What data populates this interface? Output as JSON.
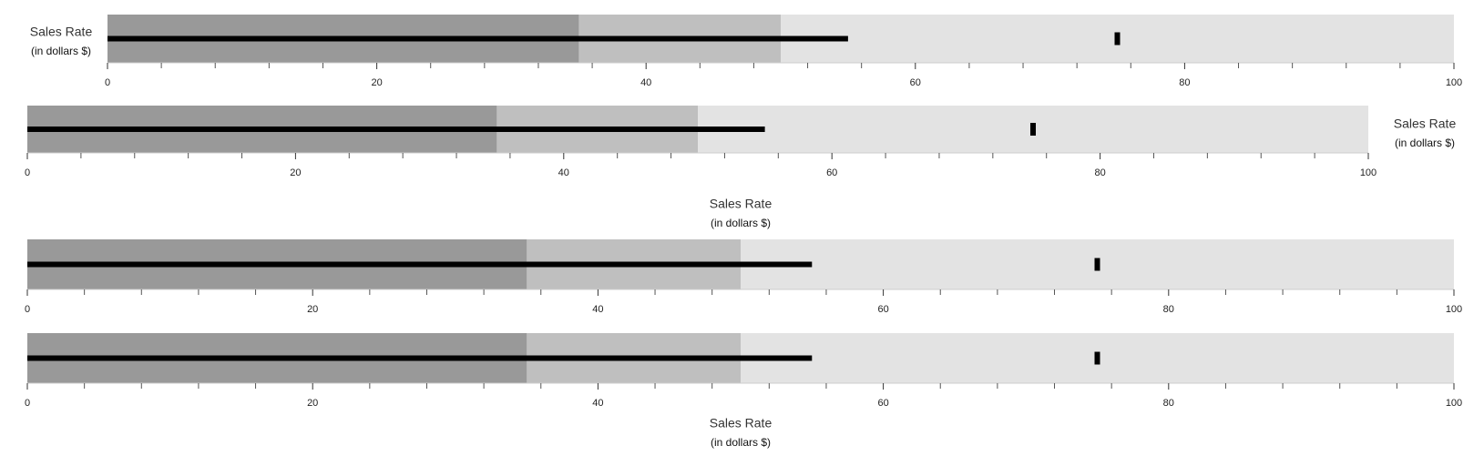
{
  "chart_data": [
    {
      "type": "bullet",
      "title": "Sales Rate",
      "subtitle": "(in dollars $)",
      "title_position": "left",
      "ranges": [
        35,
        50,
        100
      ],
      "range_colors": [
        "#999999",
        "#bfbfbf",
        "#e3e3e3"
      ],
      "value": 55,
      "value_color": "#000000",
      "marker": 75,
      "marker_color": "#000000",
      "xlim": [
        0,
        100
      ],
      "xticks": [
        0,
        20,
        40,
        60,
        80,
        100
      ],
      "xminorticks": [
        4,
        8,
        12,
        16,
        24,
        28,
        32,
        36,
        44,
        48,
        52,
        56,
        64,
        68,
        72,
        76,
        84,
        88,
        92,
        96
      ]
    },
    {
      "type": "bullet",
      "title": "Sales Rate",
      "subtitle": "(in dollars $)",
      "title_position": "right",
      "ranges": [
        35,
        50,
        100
      ],
      "range_colors": [
        "#999999",
        "#bfbfbf",
        "#e3e3e3"
      ],
      "value": 55,
      "value_color": "#000000",
      "marker": 75,
      "marker_color": "#000000",
      "xlim": [
        0,
        100
      ],
      "xticks": [
        0,
        20,
        40,
        60,
        80,
        100
      ],
      "xminorticks": [
        4,
        8,
        12,
        16,
        24,
        28,
        32,
        36,
        44,
        48,
        52,
        56,
        64,
        68,
        72,
        76,
        84,
        88,
        92,
        96
      ]
    },
    {
      "type": "bullet",
      "title": "Sales Rate",
      "subtitle": "(in dollars $)",
      "title_position": "top",
      "ranges": [
        35,
        50,
        100
      ],
      "range_colors": [
        "#999999",
        "#bfbfbf",
        "#e3e3e3"
      ],
      "value": 55,
      "value_color": "#000000",
      "marker": 75,
      "marker_color": "#000000",
      "xlim": [
        0,
        100
      ],
      "xticks": [
        0,
        20,
        40,
        60,
        80,
        100
      ],
      "xminorticks": [
        4,
        8,
        12,
        16,
        24,
        28,
        32,
        36,
        44,
        48,
        52,
        56,
        64,
        68,
        72,
        76,
        84,
        88,
        92,
        96
      ]
    },
    {
      "type": "bullet",
      "title": "Sales Rate",
      "subtitle": "(in dollars $)",
      "title_position": "bottom",
      "ranges": [
        35,
        50,
        100
      ],
      "range_colors": [
        "#999999",
        "#bfbfbf",
        "#e3e3e3"
      ],
      "value": 55,
      "value_color": "#000000",
      "marker": 75,
      "marker_color": "#000000",
      "xlim": [
        0,
        100
      ],
      "xticks": [
        0,
        20,
        40,
        60,
        80,
        100
      ],
      "xminorticks": [
        4,
        8,
        12,
        16,
        24,
        28,
        32,
        36,
        44,
        48,
        52,
        56,
        64,
        68,
        72,
        76,
        84,
        88,
        92,
        96
      ]
    }
  ]
}
